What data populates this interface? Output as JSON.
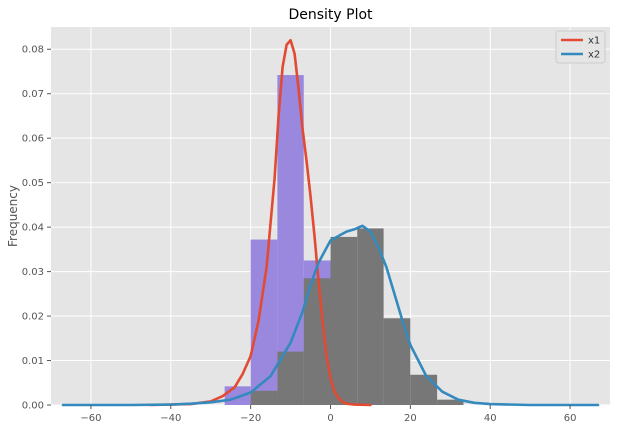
{
  "chart_data": {
    "type": "histogram-density",
    "title": "Density Plot",
    "xlabel": "",
    "ylabel": "Frequency",
    "xlim": [
      -70,
      70
    ],
    "ylim": [
      0,
      0.085
    ],
    "x_ticks": [
      -60,
      -40,
      -20,
      0,
      20,
      40,
      60
    ],
    "y_ticks": [
      0.0,
      0.01,
      0.02,
      0.03,
      0.04,
      0.05,
      0.06,
      0.07,
      0.08
    ],
    "grid": true,
    "legend_placement": "top-right",
    "histograms": [
      {
        "name": "x1",
        "color": "#9988dd",
        "bins": [
          {
            "x0": -26.5,
            "x1": -20,
            "value": 0.0042
          },
          {
            "x0": -20,
            "x1": -13.3,
            "value": 0.0372
          },
          {
            "x0": -13.3,
            "x1": -6.7,
            "value": 0.0742
          },
          {
            "x0": -6.7,
            "x1": 0,
            "value": 0.0325
          },
          {
            "x0": 0,
            "x1": 6.6,
            "value": 0.0023
          }
        ]
      },
      {
        "name": "x2",
        "color": "#777777",
        "bins": [
          {
            "x0": -20,
            "x1": -13.3,
            "value": 0.0032
          },
          {
            "x0": -13.3,
            "x1": -6.7,
            "value": 0.012
          },
          {
            "x0": -6.7,
            "x1": 0,
            "value": 0.0285
          },
          {
            "x0": 0,
            "x1": 6.7,
            "value": 0.0378
          },
          {
            "x0": 6.7,
            "x1": 13.3,
            "value": 0.0397
          },
          {
            "x0": 13.3,
            "x1": 20,
            "value": 0.0195
          },
          {
            "x0": 20,
            "x1": 26.7,
            "value": 0.0068
          },
          {
            "x0": 26.7,
            "x1": 33.3,
            "value": 0.0012
          }
        ]
      }
    ],
    "series": [
      {
        "name": "x1",
        "color": "#e24a33",
        "x": [
          -45,
          -35,
          -30,
          -27,
          -24,
          -22,
          -20,
          -18,
          -16,
          -14,
          -13,
          -12,
          -11,
          -10,
          -9,
          -8,
          -7,
          -6,
          -5,
          -4,
          -3,
          -2,
          -1,
          0,
          1,
          2,
          3,
          4,
          6,
          10
        ],
        "y": [
          0,
          0.0002,
          0.0008,
          0.002,
          0.004,
          0.007,
          0.011,
          0.019,
          0.031,
          0.051,
          0.065,
          0.076,
          0.081,
          0.082,
          0.079,
          0.071,
          0.062,
          0.055,
          0.047,
          0.038,
          0.028,
          0.019,
          0.011,
          0.006,
          0.003,
          0.0015,
          0.0007,
          0.0003,
          0.0001,
          0
        ]
      },
      {
        "name": "x2",
        "color": "#348abd",
        "x": [
          -67,
          -50,
          -40,
          -35,
          -30,
          -25,
          -20,
          -15,
          -10,
          -7,
          -5,
          -3,
          0,
          2,
          4,
          6,
          8,
          10,
          12,
          14,
          16,
          18,
          20,
          24,
          28,
          32,
          36,
          40,
          50,
          67
        ],
        "y": [
          0,
          0,
          0.0001,
          0.0003,
          0.0006,
          0.0012,
          0.0028,
          0.0065,
          0.014,
          0.021,
          0.027,
          0.032,
          0.037,
          0.038,
          0.039,
          0.0395,
          0.0403,
          0.039,
          0.0355,
          0.031,
          0.025,
          0.019,
          0.0135,
          0.0065,
          0.003,
          0.0012,
          0.0005,
          0.0002,
          0,
          0
        ]
      }
    ]
  }
}
